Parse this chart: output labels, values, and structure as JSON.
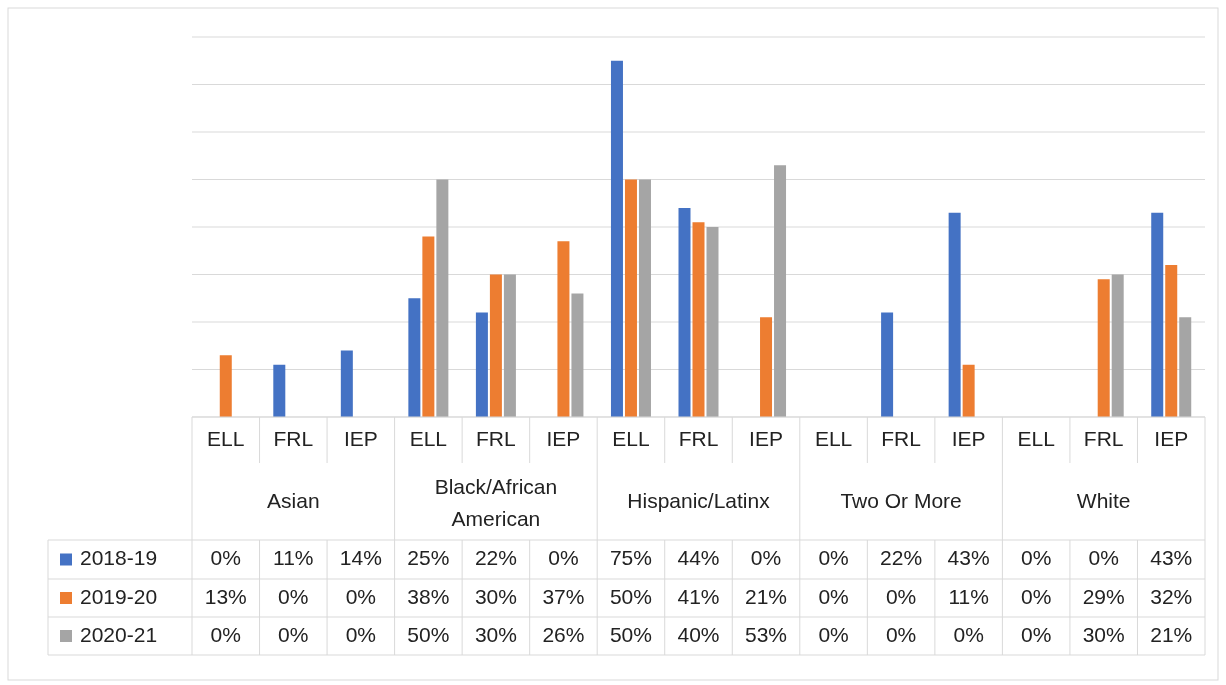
{
  "chart_data": {
    "type": "bar",
    "categories": [
      "ELL",
      "FRL",
      "IEP",
      "ELL",
      "FRL",
      "IEP",
      "ELL",
      "FRL",
      "IEP",
      "ELL",
      "FRL",
      "IEP",
      "ELL",
      "FRL",
      "IEP"
    ],
    "annotations": [
      "Asian",
      "Black/African American",
      "Hispanic/Latinx",
      "Two Or More",
      "White"
    ],
    "series": [
      {
        "name": "2018-19",
        "color": "#4472c4",
        "values": [
          0,
          11,
          14,
          25,
          22,
          0,
          75,
          44,
          0,
          0,
          22,
          43,
          0,
          0,
          43
        ],
        "value_labels": [
          "0%",
          "11%",
          "14%",
          "25%",
          "22%",
          "0%",
          "75%",
          "44%",
          "0%",
          "0%",
          "22%",
          "43%",
          "0%",
          "0%",
          "43%"
        ]
      },
      {
        "name": "2019-20",
        "color": "#ed7d31",
        "values": [
          13,
          0,
          0,
          38,
          30,
          37,
          50,
          41,
          21,
          0,
          0,
          11,
          0,
          29,
          32
        ],
        "value_labels": [
          "13%",
          "0%",
          "0%",
          "38%",
          "30%",
          "37%",
          "50%",
          "41%",
          "21%",
          "0%",
          "0%",
          "11%",
          "0%",
          "29%",
          "32%"
        ]
      },
      {
        "name": "2020-21",
        "color": "#a5a5a5",
        "values": [
          0,
          0,
          0,
          50,
          30,
          26,
          50,
          40,
          53,
          0,
          0,
          0,
          0,
          30,
          21
        ],
        "value_labels": [
          "0%",
          "0%",
          "0%",
          "50%",
          "30%",
          "26%",
          "50%",
          "40%",
          "53%",
          "0%",
          "0%",
          "0%",
          "0%",
          "30%",
          "21%"
        ]
      }
    ],
    "ylim": [
      0,
      80
    ],
    "yticks": [
      {
        "value": 0,
        "label": null
      },
      {
        "value": 10,
        "label": null
      },
      {
        "value": 20,
        "label": null
      },
      {
        "value": 30,
        "label": null
      },
      {
        "value": 40,
        "label": null
      },
      {
        "value": 50,
        "label": null
      },
      {
        "value": 60,
        "label": null
      },
      {
        "value": 70,
        "label": null
      },
      {
        "value": 80,
        "label": null
      }
    ],
    "grid": "y",
    "legend": "bottom left"
  }
}
